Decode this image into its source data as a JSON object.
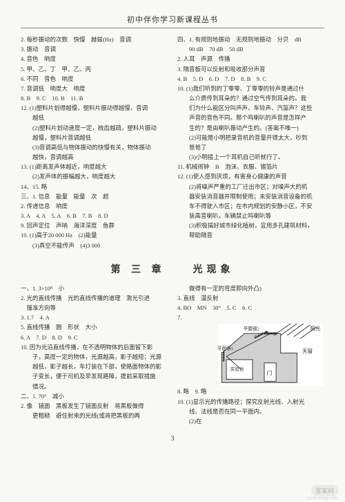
{
  "header": "初中伴你学习新课程丛书",
  "top": {
    "left": [
      "2. 每秒振动的次数　快慢　赫兹(Hz)　音调",
      "3. 振动　音调",
      "4. 音色　响度",
      "5. 甲、乙、丁　甲、乙、丙",
      "6. 不同　音色　响度",
      "7. 音调低　响度大　响度",
      "8. B　9. C　10. B　11. B",
      "12. (1)塑料片划得越慢，塑料片振动得越慢，音调",
      "　　越低",
      "　　(2)塑料片划动速度一定，梳齿越疏，塑料片振动",
      "　　越慢，塑料片音调越低",
      "　　(3)音调高低与物体振动的快慢有关，物体振动",
      "　　越快，音调越高",
      "13. (1)距离发声体越近，响度越大",
      "　　(2)发声体的振幅越大，响度越大",
      "14、15. 略",
      "三、1. 信息　能量　能量　次　超",
      "2. 传递信息　响度",
      "3. A　4. A　5. A　6. B　7. B　8. D",
      "9. 回声定位　声呐　海洋深度　鱼群",
      "10. (1)高于20 000 Hz　(2)能量",
      "　　(3)真空不能传声　(4)3 000"
    ],
    "right": [
      "四、1. 有规则地振动　无规则地振动　分贝　dB",
      "　　90 dB　70 dB　50 dB",
      "2. 人耳　声源　传播",
      "3. 隔音板可以反射和吸收部分声音",
      "4. B　5. D　6. D　7. D　8. B　9. C",
      "10. (1)我们听到的丁零零、丁零零的铃声是通过什",
      "　　么介质传到耳朵的？通过空气传到耳朵的。我",
      "　　们为什么能区分叫声声、车铃声、汽笛声？这些",
      "　　声音的音色不同。那个鸣喇叭的声音是怎样产",
      "　　生的？是由喇叭振动产生的。(答案不唯一)",
      "　　(2)可能是小明把录音机的音量开得太大，吵到",
      "　　爸爸了",
      "　　(3)小明接上一个耳机自己听就行了。",
      "11. 机械闹钟　B　泡沫、衣服、锡箔片",
      "12. (1)使人感到厌烦，有害身心健康的声音",
      "　　(2)将噪声严重的工厂迁出市区；对噪声大的机",
      "　　器安装消音器并限制使用；未安装消音设备的机",
      "　　车不得驶入市区；在市内规划的安静小区，不安",
      "　　装高音喇叭，车辆禁止鸣喇叭等",
      "　　(3)积极搞好城市绿化植树，宜用多孔建筑材料，",
      "　　帮助隔音"
    ]
  },
  "chapter": "第 三 章　　光现象",
  "bottom": {
    "left": [
      "一、1. 3×10⁸　小",
      "2. 光的直线传播　光的直线传播的道理　激光引进",
      "　撞准方向等",
      "3. 1.7　4. A",
      "5. 直线传播　圆　形状　大小",
      "6. A　7. D　8. D　9. C",
      "10. 因为光沿直线传播，在不透明物体的后面留下影",
      "　　子，高度一定的物体，光源越高，影子越短；光源",
      "　　越低，影子越长，车灯装在下部，使路面物体的影",
      "　　子变长，便于司机及早发现路障，提前采取措施",
      "　　情况。",
      "二、1. 70°　减小",
      "2. 像　镜面　黑板发生了镜面反射　将黑板做得",
      "　　更粗糙　避住射来的光线(或将把黑板的两"
    ],
    "right": [
      "　　做得有一定的弯度即向外凸)",
      "3. 直线　漫反射",
      "4. BO　MN　30°　5. C　6. C",
      "7.",
      "",
      "",
      "",
      "",
      "",
      "",
      "8. 略　9. 略",
      "10. (1)显示光的传播路径；探究反射光线、入射光",
      "　　线、法线是否在同一平面内。",
      "　　(2)在"
    ]
  },
  "diagram": {
    "sun_label": "阳光",
    "mirror1": "平面镜1",
    "mirror2": "平面镜2",
    "window": "天窗",
    "table": "实验台",
    "door": "门",
    "colors": {
      "bg": "#ffffff",
      "wall": "#d0d0d0",
      "line": "#333333",
      "text": "#333333"
    }
  },
  "page_num": "3",
  "watermark": "答案网",
  "url": "www.mxqe.com"
}
